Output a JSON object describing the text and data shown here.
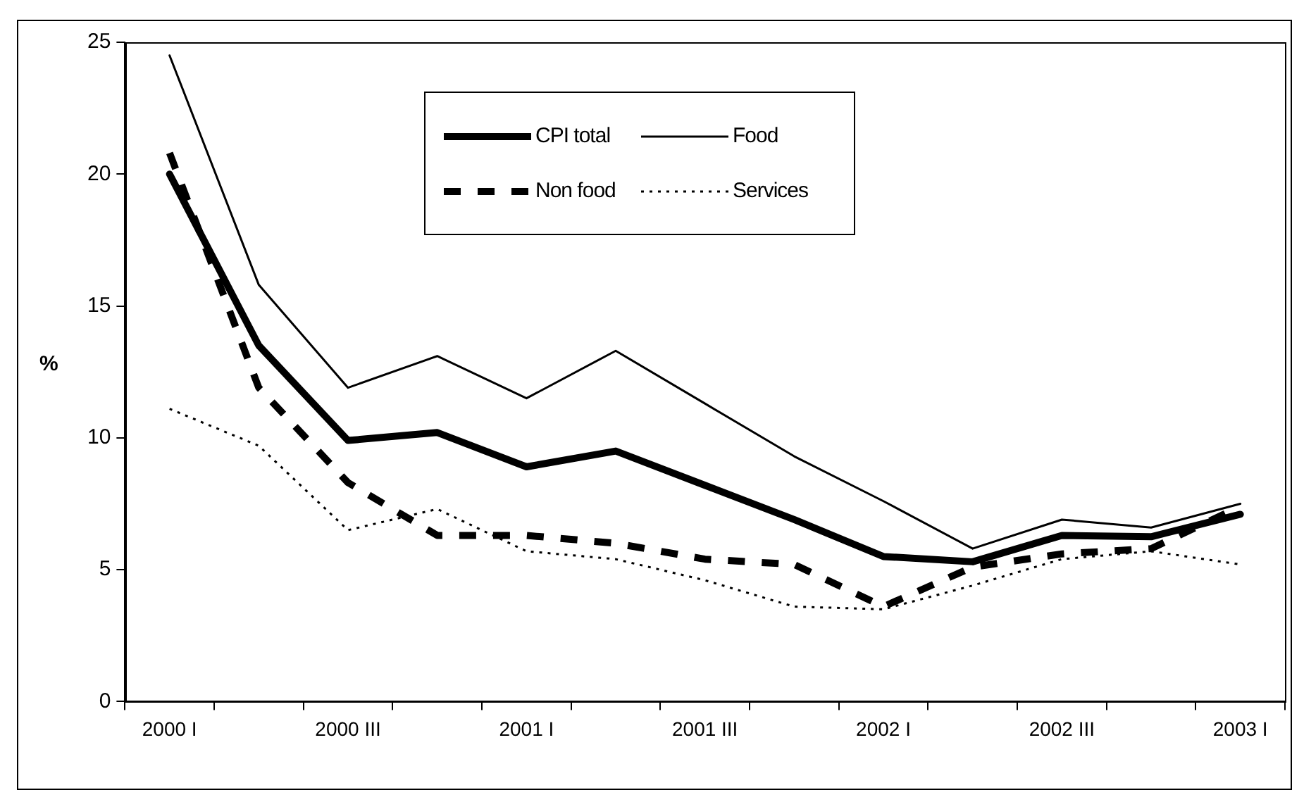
{
  "chart_data": {
    "type": "line",
    "ylabel": "%",
    "categories": [
      "2000 I",
      null,
      "2000 III",
      null,
      "2001 I",
      null,
      "2001 III",
      null,
      "2002 I",
      null,
      "2002 III",
      null,
      "2003 I"
    ],
    "ylim": [
      0,
      25
    ],
    "yticks": [
      0,
      5,
      10,
      15,
      20,
      25
    ],
    "grid": false,
    "legend": "top",
    "marker": "none",
    "series": [
      {
        "name": "CPI total",
        "color": "#000000",
        "line_style": "solid",
        "values": [
          20.0,
          13.5,
          9.9,
          10.2,
          8.9,
          9.5,
          8.2,
          6.9,
          5.5,
          5.3,
          6.3,
          6.25,
          7.1
        ]
      },
      {
        "name": "Food",
        "color": "#000000",
        "line_style": "solid",
        "values": [
          24.5,
          15.8,
          11.9,
          13.1,
          11.5,
          13.3,
          11.3,
          9.3,
          7.6,
          5.8,
          6.9,
          6.6,
          7.5
        ]
      },
      {
        "name": "Non food",
        "color": "#000000",
        "line_style": "dashed",
        "values": [
          20.8,
          11.9,
          8.3,
          6.3,
          6.3,
          6.0,
          5.4,
          5.2,
          3.6,
          5.1,
          5.6,
          5.8,
          7.4
        ]
      },
      {
        "name": "Services",
        "color": "#000000",
        "line_style": "dotted",
        "values": [
          11.1,
          9.7,
          6.5,
          7.3,
          5.7,
          5.4,
          4.6,
          3.6,
          3.5,
          4.4,
          5.4,
          5.7,
          5.2
        ]
      }
    ]
  }
}
